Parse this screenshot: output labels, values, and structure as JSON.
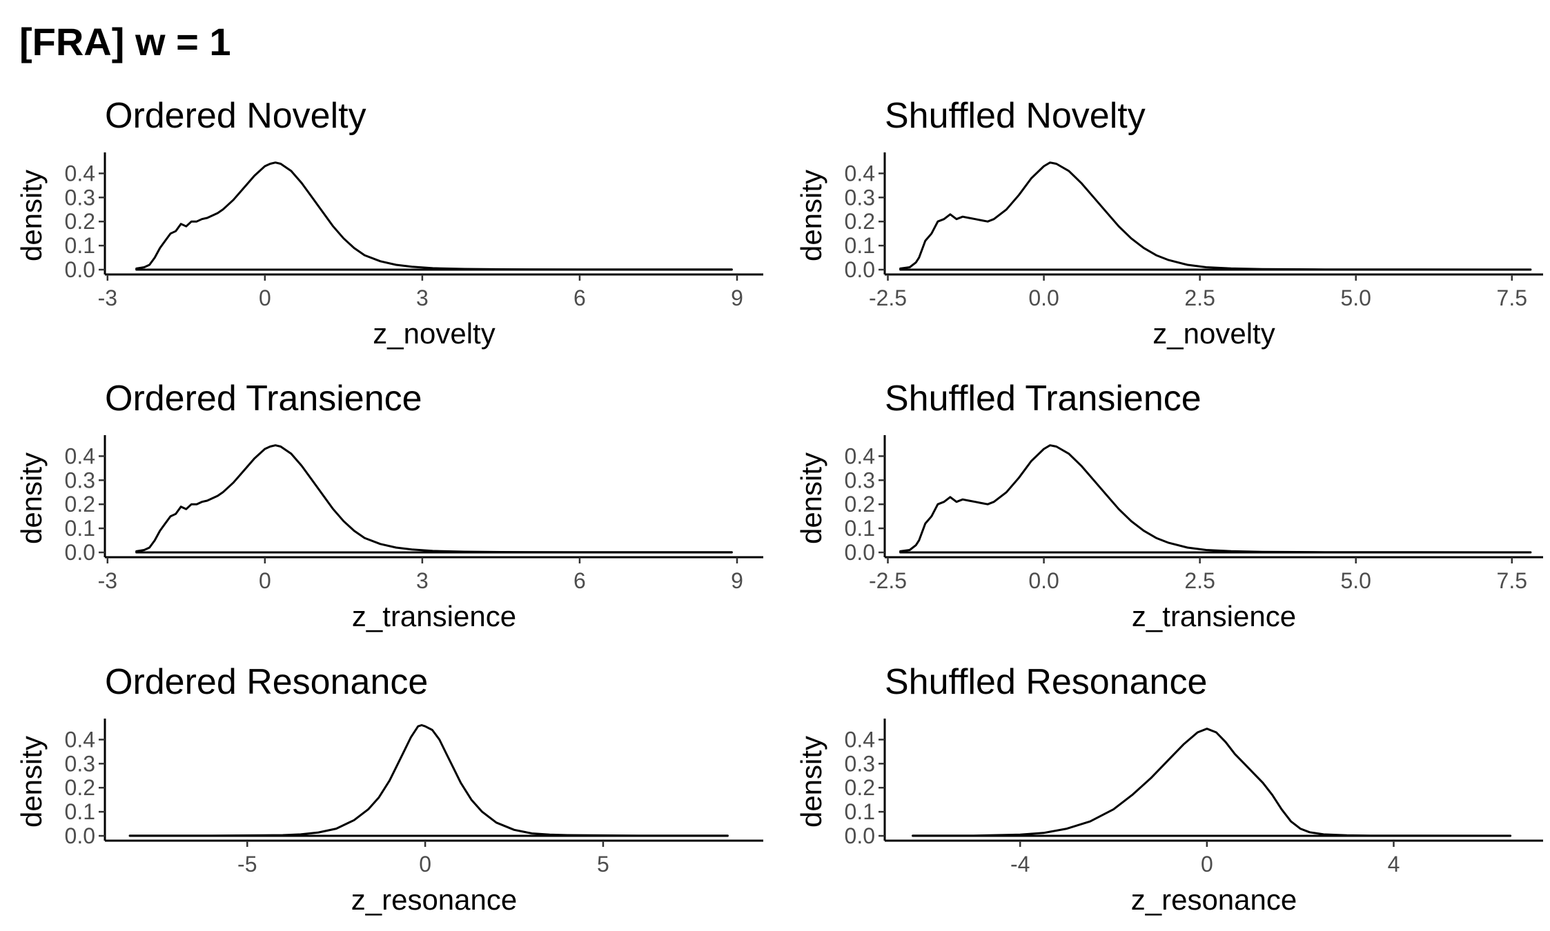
{
  "title": "[FRA] w = 1",
  "colors": {
    "line": "#000000",
    "tick_label": "#4d4d4d",
    "background": "#ffffff"
  },
  "chart_data": [
    {
      "type": "line",
      "title": "Ordered Novelty",
      "xlabel": "z_novelty",
      "ylabel": "density",
      "xlim": [
        -3.05,
        9.5
      ],
      "ylim": [
        -0.02,
        0.47
      ],
      "xticks": [
        -3,
        0,
        3,
        6,
        9
      ],
      "xtick_labels": [
        "-3",
        "0",
        "3",
        "6",
        "9"
      ],
      "yticks": [
        0.0,
        0.1,
        0.2,
        0.3,
        0.4
      ],
      "ytick_labels": [
        "0.0",
        "0.1",
        "0.2",
        "0.3",
        "0.4"
      ],
      "grid": false,
      "series": [
        {
          "x": [
            -2.45,
            -2.3,
            -2.2,
            -2.1,
            -2.0,
            -1.9,
            -1.8,
            -1.7,
            -1.6,
            -1.5,
            -1.4,
            -1.3,
            -1.2,
            -1.1,
            -1.0,
            -0.9,
            -0.8,
            -0.6,
            -0.4,
            -0.2,
            0.0,
            0.1,
            0.2,
            0.3,
            0.5,
            0.7,
            0.9,
            1.1,
            1.3,
            1.5,
            1.7,
            1.9,
            2.2,
            2.5,
            2.8,
            3.2,
            3.8,
            4.5,
            6.0,
            8.9
          ],
          "y": [
            0.005,
            0.01,
            0.02,
            0.05,
            0.09,
            0.12,
            0.15,
            0.16,
            0.19,
            0.18,
            0.2,
            0.2,
            0.21,
            0.215,
            0.225,
            0.235,
            0.25,
            0.29,
            0.34,
            0.39,
            0.43,
            0.44,
            0.445,
            0.44,
            0.41,
            0.36,
            0.3,
            0.24,
            0.18,
            0.13,
            0.09,
            0.06,
            0.035,
            0.02,
            0.012,
            0.006,
            0.003,
            0.0015,
            0.0008,
            0.0005
          ]
        }
      ]
    },
    {
      "type": "line",
      "title": "Shuffled Novelty",
      "xlabel": "z_novelty",
      "ylabel": "density",
      "xlim": [
        -2.55,
        8.0
      ],
      "ylim": [
        -0.02,
        0.47
      ],
      "xticks": [
        -2.5,
        0.0,
        2.5,
        5.0,
        7.5
      ],
      "xtick_labels": [
        "-2.5",
        "0.0",
        "2.5",
        "5.0",
        "7.5"
      ],
      "yticks": [
        0.0,
        0.1,
        0.2,
        0.3,
        0.4
      ],
      "ytick_labels": [
        "0.0",
        "0.1",
        "0.2",
        "0.3",
        "0.4"
      ],
      "grid": false,
      "series": [
        {
          "x": [
            -2.3,
            -2.15,
            -2.05,
            -2.0,
            -1.9,
            -1.8,
            -1.7,
            -1.6,
            -1.5,
            -1.4,
            -1.3,
            -1.2,
            -1.1,
            -1.0,
            -0.9,
            -0.8,
            -0.6,
            -0.4,
            -0.2,
            0.0,
            0.1,
            0.2,
            0.4,
            0.6,
            0.8,
            1.0,
            1.2,
            1.4,
            1.6,
            1.8,
            2.0,
            2.3,
            2.6,
            3.0,
            3.5,
            4.5,
            6.0,
            7.8
          ],
          "y": [
            0.005,
            0.01,
            0.03,
            0.05,
            0.12,
            0.15,
            0.2,
            0.21,
            0.23,
            0.21,
            0.22,
            0.215,
            0.21,
            0.205,
            0.2,
            0.21,
            0.25,
            0.31,
            0.38,
            0.43,
            0.445,
            0.44,
            0.41,
            0.36,
            0.3,
            0.24,
            0.18,
            0.13,
            0.09,
            0.06,
            0.04,
            0.02,
            0.01,
            0.005,
            0.002,
            0.001,
            0.0005,
            0.0003
          ]
        }
      ]
    },
    {
      "type": "line",
      "title": "Ordered Transience",
      "xlabel": "z_transience",
      "ylabel": "density",
      "xlim": [
        -3.05,
        9.5
      ],
      "ylim": [
        -0.02,
        0.47
      ],
      "xticks": [
        -3,
        0,
        3,
        6,
        9
      ],
      "xtick_labels": [
        "-3",
        "0",
        "3",
        "6",
        "9"
      ],
      "yticks": [
        0.0,
        0.1,
        0.2,
        0.3,
        0.4
      ],
      "ytick_labels": [
        "0.0",
        "0.1",
        "0.2",
        "0.3",
        "0.4"
      ],
      "grid": false,
      "series": [
        {
          "x": [
            -2.45,
            -2.3,
            -2.2,
            -2.1,
            -2.0,
            -1.9,
            -1.8,
            -1.7,
            -1.6,
            -1.5,
            -1.4,
            -1.3,
            -1.2,
            -1.1,
            -1.0,
            -0.9,
            -0.8,
            -0.6,
            -0.4,
            -0.2,
            0.0,
            0.1,
            0.2,
            0.3,
            0.5,
            0.7,
            0.9,
            1.1,
            1.3,
            1.5,
            1.7,
            1.9,
            2.2,
            2.5,
            2.8,
            3.2,
            3.8,
            4.5,
            6.0,
            8.9
          ],
          "y": [
            0.005,
            0.01,
            0.02,
            0.05,
            0.09,
            0.12,
            0.15,
            0.16,
            0.19,
            0.18,
            0.2,
            0.2,
            0.21,
            0.215,
            0.225,
            0.235,
            0.25,
            0.29,
            0.34,
            0.39,
            0.43,
            0.44,
            0.445,
            0.44,
            0.41,
            0.36,
            0.3,
            0.24,
            0.18,
            0.13,
            0.09,
            0.06,
            0.035,
            0.02,
            0.012,
            0.006,
            0.003,
            0.0015,
            0.0008,
            0.0005
          ]
        }
      ]
    },
    {
      "type": "line",
      "title": "Shuffled Transience",
      "xlabel": "z_transience",
      "ylabel": "density",
      "xlim": [
        -2.55,
        8.0
      ],
      "ylim": [
        -0.02,
        0.47
      ],
      "xticks": [
        -2.5,
        0.0,
        2.5,
        5.0,
        7.5
      ],
      "xtick_labels": [
        "-2.5",
        "0.0",
        "2.5",
        "5.0",
        "7.5"
      ],
      "yticks": [
        0.0,
        0.1,
        0.2,
        0.3,
        0.4
      ],
      "ytick_labels": [
        "0.0",
        "0.1",
        "0.2",
        "0.3",
        "0.4"
      ],
      "grid": false,
      "series": [
        {
          "x": [
            -2.3,
            -2.15,
            -2.05,
            -2.0,
            -1.9,
            -1.8,
            -1.7,
            -1.6,
            -1.5,
            -1.4,
            -1.3,
            -1.2,
            -1.1,
            -1.0,
            -0.9,
            -0.8,
            -0.6,
            -0.4,
            -0.2,
            0.0,
            0.1,
            0.2,
            0.4,
            0.6,
            0.8,
            1.0,
            1.2,
            1.4,
            1.6,
            1.8,
            2.0,
            2.3,
            2.6,
            3.0,
            3.5,
            4.5,
            6.0,
            7.8
          ],
          "y": [
            0.005,
            0.01,
            0.03,
            0.05,
            0.12,
            0.15,
            0.2,
            0.21,
            0.23,
            0.21,
            0.22,
            0.215,
            0.21,
            0.205,
            0.2,
            0.21,
            0.25,
            0.31,
            0.38,
            0.43,
            0.445,
            0.44,
            0.41,
            0.36,
            0.3,
            0.24,
            0.18,
            0.13,
            0.09,
            0.06,
            0.04,
            0.02,
            0.01,
            0.005,
            0.002,
            0.001,
            0.0005,
            0.0003
          ]
        }
      ]
    },
    {
      "type": "line",
      "title": "Ordered Resonance",
      "xlabel": "z_resonance",
      "ylabel": "density",
      "xlim": [
        -9.0,
        9.5
      ],
      "ylim": [
        -0.02,
        0.47
      ],
      "xticks": [
        -5,
        0,
        5
      ],
      "xtick_labels": [
        "-5",
        "0",
        "5"
      ],
      "yticks": [
        0.0,
        0.1,
        0.2,
        0.3,
        0.4
      ],
      "ytick_labels": [
        "0.0",
        "0.1",
        "0.2",
        "0.3",
        "0.4"
      ],
      "grid": false,
      "series": [
        {
          "x": [
            -8.3,
            -6.0,
            -4.0,
            -3.5,
            -3.0,
            -2.5,
            -2.0,
            -1.6,
            -1.3,
            -1.0,
            -0.8,
            -0.6,
            -0.4,
            -0.2,
            -0.1,
            0.0,
            0.2,
            0.4,
            0.6,
            0.8,
            1.0,
            1.3,
            1.6,
            2.0,
            2.5,
            3.0,
            3.5,
            4.0,
            6.0,
            8.5
          ],
          "y": [
            0.0005,
            0.001,
            0.003,
            0.006,
            0.014,
            0.03,
            0.065,
            0.11,
            0.16,
            0.23,
            0.29,
            0.35,
            0.41,
            0.455,
            0.46,
            0.455,
            0.44,
            0.4,
            0.34,
            0.28,
            0.22,
            0.15,
            0.1,
            0.055,
            0.025,
            0.01,
            0.005,
            0.003,
            0.001,
            0.0005
          ]
        }
      ]
    },
    {
      "type": "line",
      "title": "Shuffled Resonance",
      "xlabel": "z_resonance",
      "ylabel": "density",
      "xlim": [
        -6.9,
        7.2
      ],
      "ylim": [
        -0.02,
        0.47
      ],
      "xticks": [
        -4,
        0,
        4
      ],
      "xtick_labels": [
        "-4",
        "0",
        "4"
      ],
      "yticks": [
        0.0,
        0.1,
        0.2,
        0.3,
        0.4
      ],
      "ytick_labels": [
        "0.0",
        "0.1",
        "0.2",
        "0.3",
        "0.4"
      ],
      "grid": false,
      "series": [
        {
          "x": [
            -6.3,
            -5.0,
            -4.0,
            -3.5,
            -3.0,
            -2.5,
            -2.0,
            -1.6,
            -1.2,
            -0.8,
            -0.5,
            -0.2,
            0.0,
            0.2,
            0.4,
            0.6,
            0.8,
            1.0,
            1.2,
            1.4,
            1.6,
            1.8,
            2.0,
            2.2,
            2.5,
            3.0,
            3.5,
            4.5,
            6.5
          ],
          "y": [
            0.0005,
            0.001,
            0.005,
            0.012,
            0.03,
            0.06,
            0.11,
            0.17,
            0.24,
            0.32,
            0.38,
            0.43,
            0.445,
            0.43,
            0.39,
            0.34,
            0.3,
            0.26,
            0.22,
            0.17,
            0.11,
            0.06,
            0.03,
            0.015,
            0.006,
            0.002,
            0.001,
            0.0005,
            0.0003
          ]
        }
      ]
    }
  ]
}
